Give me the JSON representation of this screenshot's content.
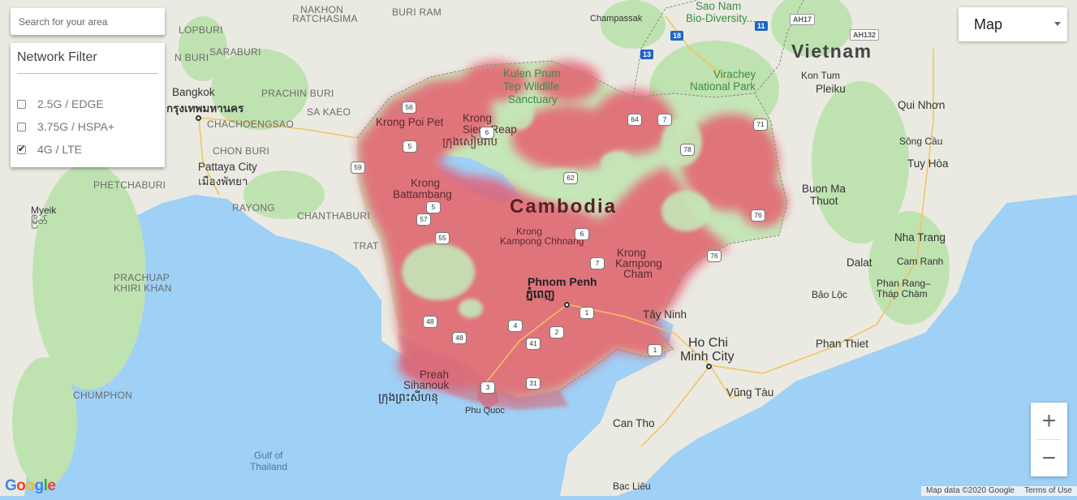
{
  "search": {
    "placeholder": "Search for your area"
  },
  "filter": {
    "title": "Network Filter",
    "options": [
      {
        "label": "2.5G / EDGE",
        "checked": false
      },
      {
        "label": "3.75G / HSPA+",
        "checked": false
      },
      {
        "label": "4G / LTE",
        "checked": true
      }
    ]
  },
  "map_type": {
    "selected": "Map"
  },
  "zoom": {
    "in": "+",
    "out": "−"
  },
  "attribution": {
    "map_data": "Map data ©2020 Google",
    "terms": "Terms of Use"
  },
  "logo": "Google",
  "colors": {
    "coverage": "#e8556a",
    "land": "#eaeae2",
    "green": "#bfe2b1",
    "water": "#9fd0f5",
    "accent": "#1e64c8"
  },
  "labels": {
    "countries": {
      "vietnam": "Vietnam",
      "cambodia": "Cambodia"
    },
    "provinces": {
      "nakhon": "NAKHON",
      "ratchasima": "RATCHASIMA",
      "buri_ram": "BURI RAM",
      "lopburi": "LOPBURI",
      "saraburi": "SARABURI",
      "nburi": "N BURI",
      "prachin": "PRACHIN BURI",
      "sakaeo": "SA KAEO",
      "chachoeng": "CHACHOENGSAO",
      "chonburi": "CHON BURI",
      "phetchaburi": "PHETCHABURI",
      "rayong": "RAYONG",
      "chanthaburi": "CHANTHABURI",
      "trat": "TRAT",
      "prachuap": "PRACHUAP",
      "khiri": "KHIRI KHAN",
      "chumphon": "CHUMPHON"
    },
    "cities": {
      "bangkok": "Bangkok",
      "bangkok_th": "กรุงเทพมหานคร",
      "pattaya": "Pattaya City",
      "pattaya_th": "เมืองพัทยา",
      "myeik": "Myeik",
      "myeik_my": "မြိတ်",
      "champassak": "Champassak",
      "krong_poi": "Krong Poi Pet",
      "krong_siem": "Krong",
      "siem_reap": "Siem Reap",
      "siem_reap_kh": "ក្រុងសៀមរាប",
      "krong_batt": "Krong",
      "battambang": "Battambang",
      "krong_kch": "Krong",
      "kampong_chhnang": "Kampong Chhnang",
      "krong_kc": "Krong",
      "kampong_cham": "Kampong",
      "cham": "Cham",
      "phnom_penh": "Phnom Penh",
      "phnom_penh_kh": "ភ្នំពេញ",
      "preah": "Preah",
      "sihanouk": "Sihanouk",
      "sihanouk_kh": "ក្រុងព្រះសីហនុ",
      "phu_quoc": "Phu Quoc",
      "tay_ninh": "Tây Ninh",
      "ho_chi": "Ho Chi",
      "minh_city": "Minh City",
      "can_tho": "Can Tho",
      "vung_tau": "Vũng Tàu",
      "phan_thiet": "Phan Thiet",
      "bao_loc": "Bảo Lộc",
      "phan_rang": "Phan Rang–",
      "thap_cham": "Tháp Chàm",
      "dalat": "Dalat",
      "cam_ranh": "Cam Ranh",
      "nha_trang": "Nha Trang",
      "buon_ma": "Buon Ma",
      "thuot": "Thuot",
      "tuy_hoa": "Tuy Hòa",
      "song_cau": "Sông Cầu",
      "quy_nhon": "Qui Nhơn",
      "kon_tum": "Kon Tum",
      "pleiku": "Pleiku",
      "bac_lieu": "Bạc Liêu"
    },
    "parks": {
      "kulen_a": "Kulen Prum",
      "kulen_b": "Tep Wildlife",
      "kulen_c": "Sanctuary",
      "virachey_a": "Virachey",
      "virachey_b": "National Park",
      "xe_pian_a": "Sao Nam",
      "xe_pian_b": "Bio-Diversity..."
    },
    "seas": {
      "gulf_a": "Gulf of",
      "gulf_b": "Thailand"
    },
    "roads": [
      "56",
      "5",
      "6",
      "59",
      "64",
      "7",
      "78",
      "62",
      "71",
      "76",
      "5",
      "6",
      "57",
      "7",
      "55",
      "48",
      "4",
      "3",
      "41",
      "2",
      "31",
      "1",
      "48",
      "1",
      "76",
      "13",
      "18",
      "11",
      "AH17",
      "AH132"
    ]
  }
}
